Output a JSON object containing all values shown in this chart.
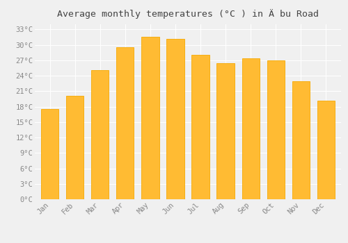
{
  "title": "Average monthly temperatures (°C ) in Ä bu Road",
  "months": [
    "Jan",
    "Feb",
    "Mar",
    "Apr",
    "May",
    "Jun",
    "Jul",
    "Aug",
    "Sep",
    "Oct",
    "Nov",
    "Dec"
  ],
  "values": [
    17.6,
    20.1,
    25.1,
    29.6,
    31.6,
    31.1,
    28.1,
    26.5,
    27.4,
    27.0,
    23.0,
    19.1
  ],
  "bar_color": "#FFBB33",
  "bar_edge_color": "#F5A800",
  "background_color": "#F0F0F0",
  "plot_bg_color": "#F0F0F0",
  "grid_color": "#FFFFFF",
  "tick_label_color": "#888888",
  "title_color": "#444444",
  "ylim": [
    0,
    34
  ],
  "ytick_step": 3,
  "title_fontsize": 9.5,
  "tick_fontsize": 7.5
}
